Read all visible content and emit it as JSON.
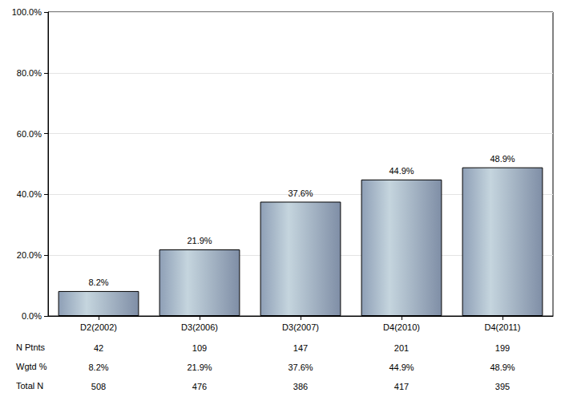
{
  "chart_data": {
    "type": "bar",
    "categories": [
      "D2(2002)",
      "D3(2006)",
      "D3(2007)",
      "D4(2010)",
      "D4(2011)"
    ],
    "values": [
      8.2,
      21.9,
      37.6,
      44.9,
      48.9
    ],
    "value_labels": [
      "8.2%",
      "21.9%",
      "37.6%",
      "44.9%",
      "48.9%"
    ],
    "data_labels": true,
    "color": "#c5d5de",
    "ylim": [
      0,
      100
    ],
    "yticks": [
      {
        "value": 0,
        "label": "0.0%"
      },
      {
        "value": 20,
        "label": "20.0%"
      },
      {
        "value": 40,
        "label": "40.0%"
      },
      {
        "value": 60,
        "label": "60.0%"
      },
      {
        "value": 80,
        "label": "80.0%"
      },
      {
        "value": 100,
        "label": "100.0%"
      }
    ],
    "grid": true,
    "table": {
      "rows": [
        {
          "label": "N Ptnts",
          "values": [
            42,
            109,
            147,
            201,
            199
          ]
        },
        {
          "label": "Wgtd %",
          "values": [
            "8.2%",
            "21.9%",
            "37.6%",
            "44.9%",
            "48.9%"
          ]
        },
        {
          "label": "Total N",
          "values": [
            508,
            476,
            386,
            417,
            395
          ]
        }
      ]
    }
  }
}
